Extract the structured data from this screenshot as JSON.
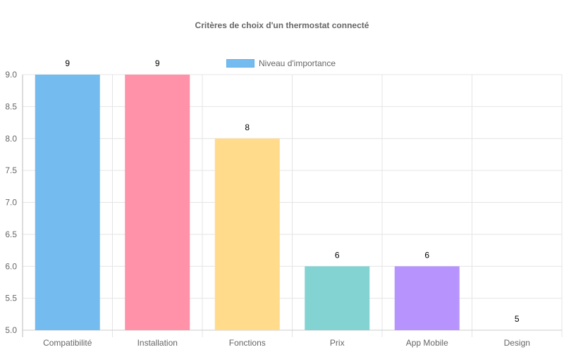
{
  "chart_data": {
    "type": "bar",
    "title": "Critères de choix d'un thermostat connecté",
    "categories": [
      "Compatibilité",
      "Installation",
      "Fonctions",
      "Prix",
      "App Mobile",
      "Design"
    ],
    "series": [
      {
        "name": "Niveau d'importance",
        "values": [
          9,
          9,
          8,
          6,
          6,
          5
        ]
      }
    ],
    "colors": [
      "#74bcef",
      "#ff91a8",
      "#ffdb8b",
      "#84d3d3",
      "#b794fd",
      "#c9cbcf"
    ],
    "xlabel": "",
    "ylabel": "",
    "ylim": [
      5,
      9
    ],
    "yticks": [
      "5.0",
      "5.5",
      "6.0",
      "6.5",
      "7.0",
      "7.5",
      "8.0",
      "8.5",
      "9.0"
    ],
    "grid": true,
    "legend_position": "top",
    "data_labels": true
  }
}
